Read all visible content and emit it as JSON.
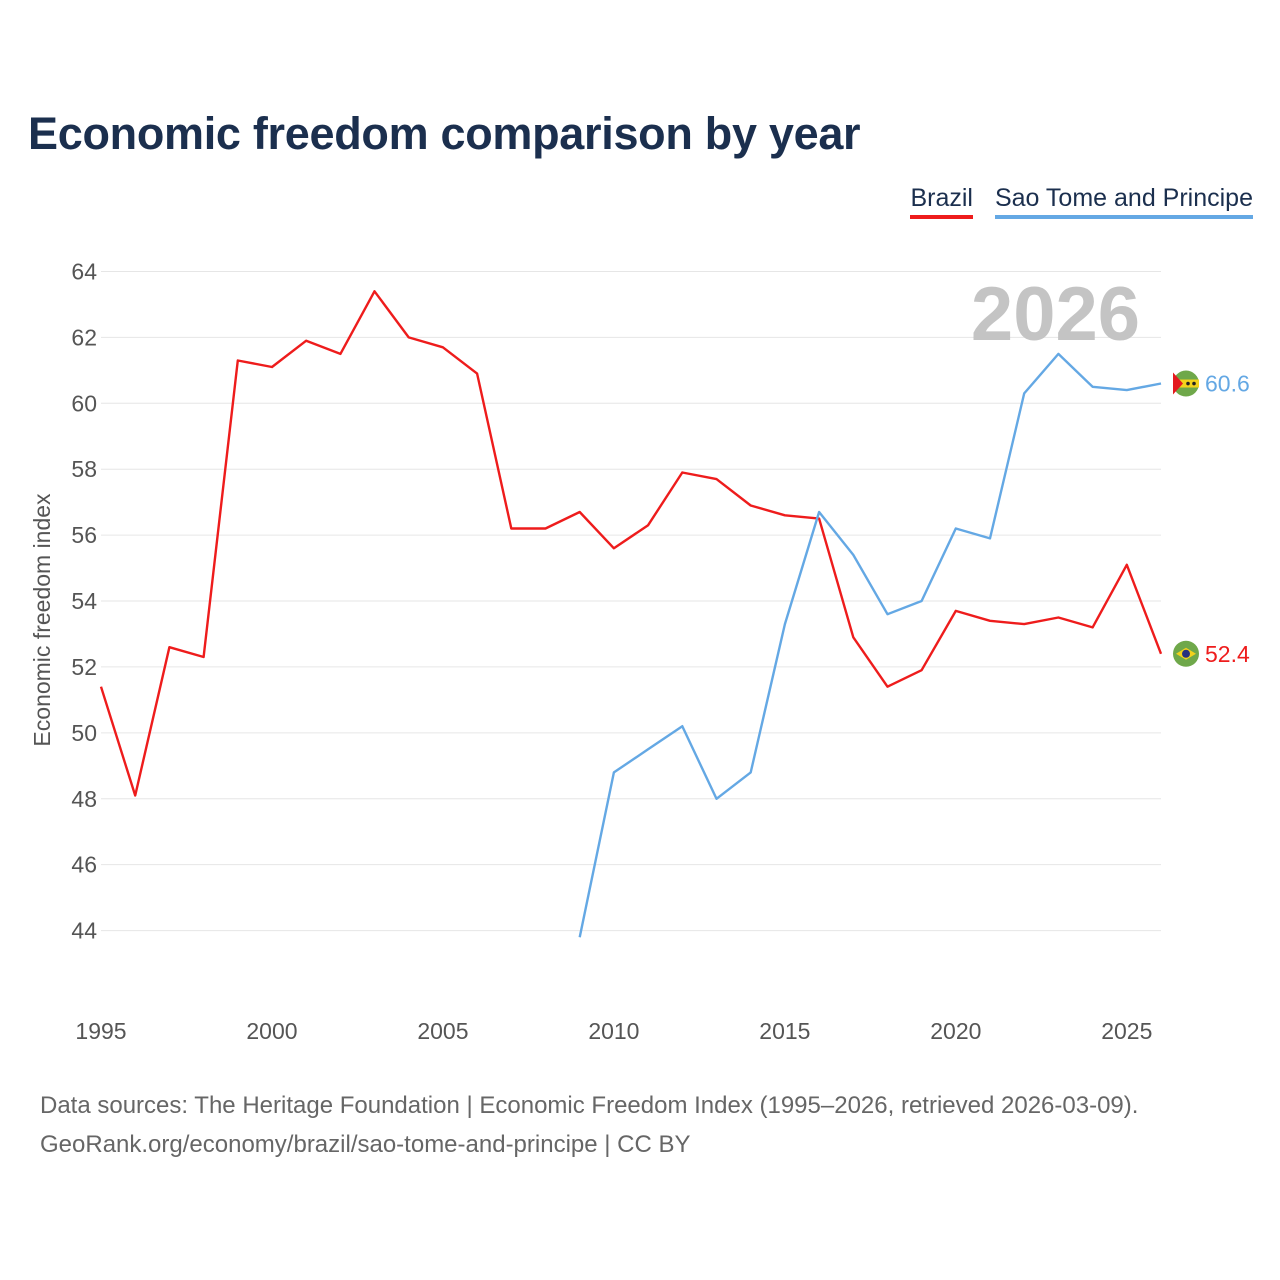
{
  "chart_data": {
    "type": "line",
    "title": "Economic freedom comparison by year",
    "xlabel": "",
    "ylabel": "Economic freedom index",
    "xlim": [
      1995,
      2026
    ],
    "ylim": [
      42.5,
      64.5
    ],
    "x_ticks": [
      1995,
      2000,
      2005,
      2010,
      2015,
      2020,
      2025
    ],
    "y_ticks": [
      44,
      46,
      48,
      50,
      52,
      54,
      56,
      58,
      60,
      62,
      64
    ],
    "grid": true,
    "legend_position": "top-right",
    "year_label": "2026",
    "series": [
      {
        "name": "Brazil",
        "color": "#ee1c1c",
        "end_label": "52.4",
        "flag_icon": "brazil-flag-icon",
        "points": [
          [
            1995,
            51.4
          ],
          [
            1996,
            48.1
          ],
          [
            1997,
            52.6
          ],
          [
            1998,
            52.3
          ],
          [
            1999,
            61.3
          ],
          [
            2000,
            61.1
          ],
          [
            2001,
            61.9
          ],
          [
            2002,
            61.5
          ],
          [
            2003,
            63.4
          ],
          [
            2004,
            62.0
          ],
          [
            2005,
            61.7
          ],
          [
            2006,
            60.9
          ],
          [
            2007,
            56.2
          ],
          [
            2008,
            56.2
          ],
          [
            2009,
            56.7
          ],
          [
            2010,
            55.6
          ],
          [
            2011,
            56.3
          ],
          [
            2012,
            57.9
          ],
          [
            2013,
            57.7
          ],
          [
            2014,
            56.9
          ],
          [
            2015,
            56.6
          ],
          [
            2016,
            56.5
          ],
          [
            2017,
            52.9
          ],
          [
            2018,
            51.4
          ],
          [
            2019,
            51.9
          ],
          [
            2020,
            53.7
          ],
          [
            2021,
            53.4
          ],
          [
            2022,
            53.3
          ],
          [
            2023,
            53.5
          ],
          [
            2024,
            53.2
          ],
          [
            2025,
            55.1
          ],
          [
            2026,
            52.4
          ]
        ]
      },
      {
        "name": "Sao Tome and Principe",
        "color": "#64a8e4",
        "end_label": "60.6",
        "flag_icon": "sao-tome-flag-icon",
        "points": [
          [
            2009,
            43.8
          ],
          [
            2010,
            48.8
          ],
          [
            2011,
            49.5
          ],
          [
            2012,
            50.2
          ],
          [
            2013,
            48.0
          ],
          [
            2014,
            48.8
          ],
          [
            2015,
            53.3
          ],
          [
            2016,
            56.7
          ],
          [
            2017,
            55.4
          ],
          [
            2018,
            53.6
          ],
          [
            2019,
            54.0
          ],
          [
            2020,
            56.2
          ],
          [
            2021,
            55.9
          ],
          [
            2022,
            60.3
          ],
          [
            2023,
            61.5
          ],
          [
            2024,
            60.5
          ],
          [
            2025,
            60.4
          ],
          [
            2026,
            60.6
          ]
        ]
      }
    ]
  },
  "source": {
    "line1": "Data sources: The Heritage Foundation | Economic Freedom Index (1995–2026, retrieved 2026-03-09).",
    "line2": "GeoRank.org/economy/brazil/sao-tome-and-principe | CC BY"
  }
}
